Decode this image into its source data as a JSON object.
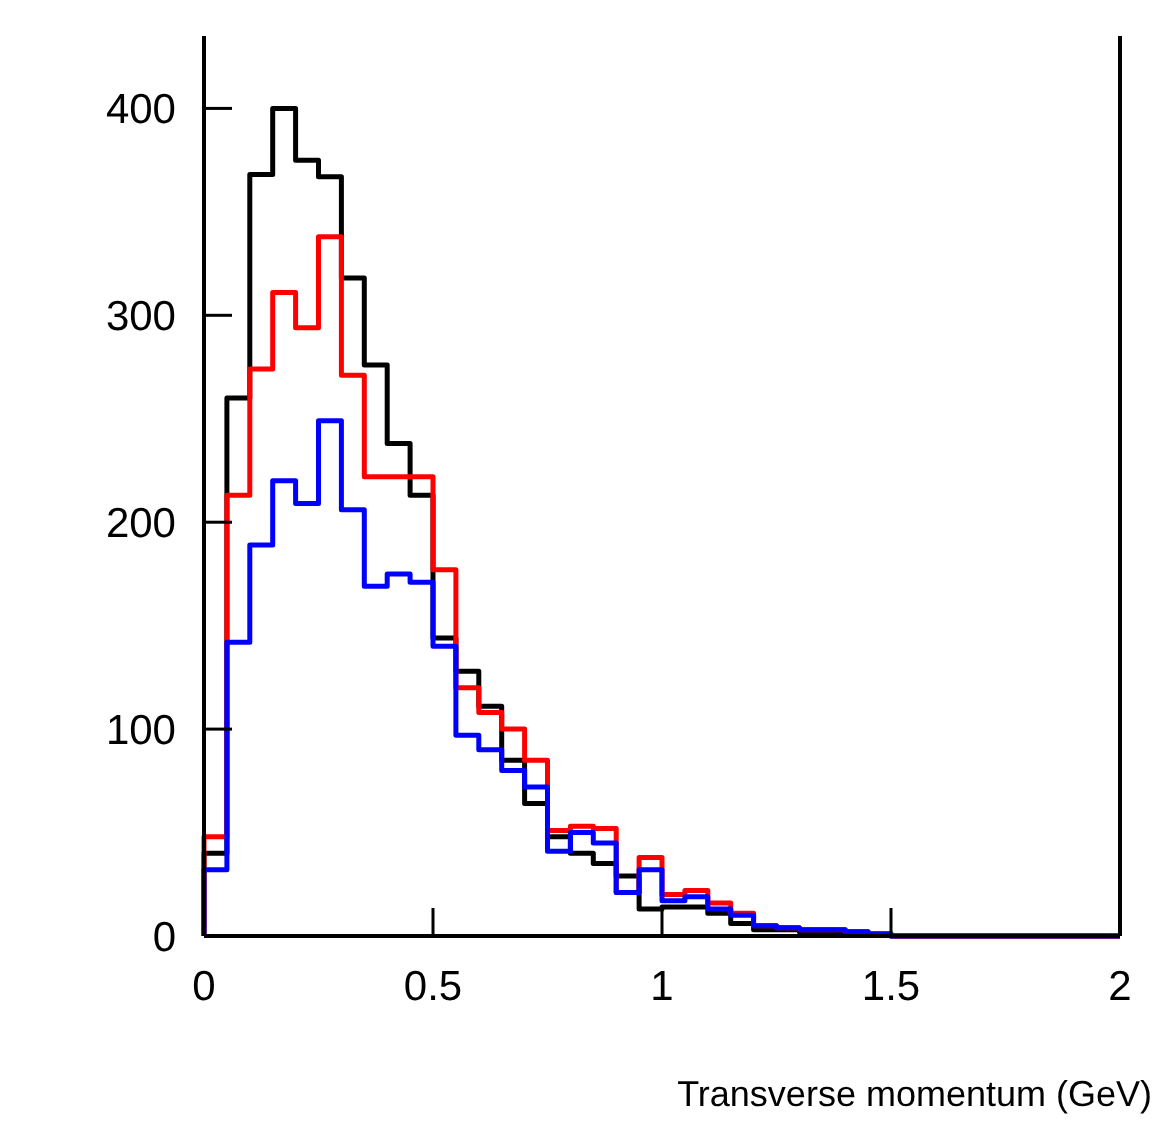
{
  "chart_data": {
    "type": "histogram",
    "xlabel": "Transverse momentum (GeV)",
    "bins": [
      0,
      0.05,
      0.1,
      0.15,
      0.2,
      0.25,
      0.3,
      0.35,
      0.4,
      0.45,
      0.5,
      0.55,
      0.6,
      0.65,
      0.7,
      0.75,
      0.8,
      0.85,
      0.9,
      0.95,
      1,
      1.05,
      1.1,
      1.15,
      1.2,
      1.25,
      1.3,
      1.35,
      1.4,
      1.45,
      1.5,
      1.55,
      1.6,
      1.65,
      1.7,
      1.75,
      1.8,
      1.85,
      1.9,
      1.95,
      2
    ],
    "series": [
      {
        "color": "#000000",
        "values": [
          40,
          260,
          368,
          400,
          375,
          367,
          318,
          276,
          238,
          213,
          144,
          128,
          111,
          85,
          64,
          48,
          40,
          35,
          29,
          13,
          14,
          14,
          11,
          6,
          3,
          3,
          2,
          2,
          1,
          1,
          0,
          0,
          0,
          0,
          0,
          0,
          0,
          0,
          0,
          0
        ]
      },
      {
        "color": "#ff0000",
        "values": [
          48,
          213,
          274,
          311,
          294,
          338,
          271,
          222,
          222,
          222,
          177,
          120,
          108,
          100,
          85,
          51,
          53,
          52,
          21,
          38,
          20,
          22,
          16,
          11,
          5,
          4,
          3,
          3,
          2,
          1,
          0,
          0,
          0,
          0,
          0,
          0,
          0,
          0,
          0,
          0
        ]
      },
      {
        "color": "#0000ff",
        "values": [
          32,
          142,
          189,
          220,
          209,
          249,
          206,
          169,
          175,
          171,
          140,
          97,
          90,
          80,
          72,
          41,
          50,
          45,
          21,
          32,
          17,
          19,
          13,
          10,
          5,
          4,
          3,
          3,
          2,
          1,
          0,
          0,
          0,
          0,
          0,
          0,
          0,
          0,
          0,
          0
        ]
      }
    ],
    "xlim": [
      0,
      2
    ],
    "xticks": [
      0,
      0.5,
      1,
      1.5,
      2
    ],
    "ylim": [
      0,
      435
    ],
    "yticks": [
      0,
      100,
      200,
      300,
      400
    ],
    "grid": false
  }
}
